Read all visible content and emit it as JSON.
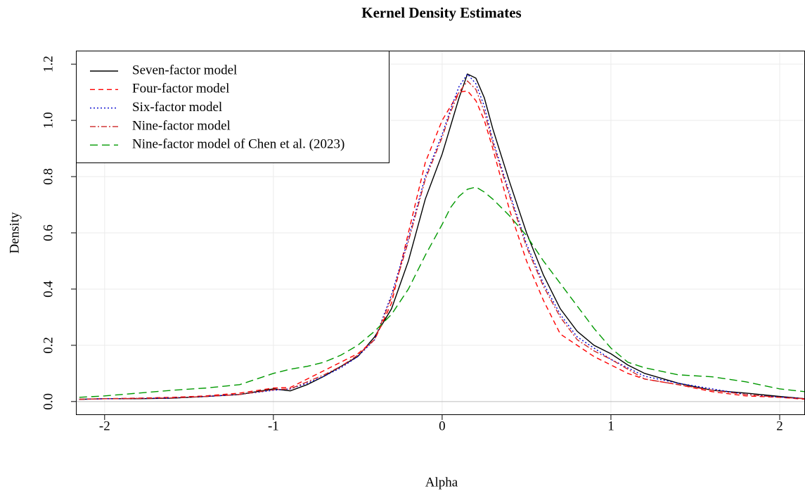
{
  "chart_data": {
    "type": "line",
    "title": "Kernel Density Estimates",
    "x_label": "Alpha",
    "y_label": "Density",
    "x": [
      -2.15,
      -2.0,
      -1.8,
      -1.6,
      -1.4,
      -1.2,
      -1.0,
      -0.9,
      -0.8,
      -0.7,
      -0.6,
      -0.5,
      -0.4,
      -0.3,
      -0.2,
      -0.1,
      0,
      0.05,
      0.1,
      0.15,
      0.2,
      0.25,
      0.3,
      0.4,
      0.5,
      0.6,
      0.7,
      0.8,
      0.9,
      1.0,
      1.1,
      1.2,
      1.4,
      1.6,
      1.8,
      2.0,
      2.15
    ],
    "series": [
      {
        "name": "Seven-factor model",
        "color": "#000000",
        "linestyle": "solid",
        "values": [
          0.008,
          0.01,
          0.01,
          0.012,
          0.018,
          0.025,
          0.045,
          0.038,
          0.06,
          0.09,
          0.125,
          0.16,
          0.23,
          0.33,
          0.5,
          0.72,
          0.88,
          0.98,
          1.08,
          1.165,
          1.15,
          1.08,
          0.97,
          0.78,
          0.6,
          0.45,
          0.33,
          0.25,
          0.2,
          0.17,
          0.13,
          0.1,
          0.065,
          0.04,
          0.03,
          0.018,
          0.01
        ]
      },
      {
        "name": "Four-factor model",
        "color": "#ff0000",
        "linestyle": "dashed",
        "values": [
          0.008,
          0.01,
          0.012,
          0.015,
          0.02,
          0.03,
          0.048,
          0.05,
          0.08,
          0.11,
          0.14,
          0.17,
          0.22,
          0.35,
          0.6,
          0.85,
          1.0,
          1.05,
          1.1,
          1.105,
          1.07,
          1.0,
          0.9,
          0.68,
          0.5,
          0.36,
          0.24,
          0.2,
          0.16,
          0.13,
          0.1,
          0.08,
          0.06,
          0.035,
          0.02,
          0.015,
          0.008
        ]
      },
      {
        "name": "Six-factor model",
        "color": "#0000cd",
        "linestyle": "dotted",
        "values": [
          0.008,
          0.01,
          0.011,
          0.013,
          0.018,
          0.025,
          0.04,
          0.045,
          0.065,
          0.09,
          0.12,
          0.16,
          0.22,
          0.38,
          0.58,
          0.8,
          0.95,
          1.04,
          1.12,
          1.165,
          1.13,
          1.05,
          0.93,
          0.74,
          0.56,
          0.42,
          0.31,
          0.23,
          0.19,
          0.15,
          0.12,
          0.09,
          0.065,
          0.045,
          0.025,
          0.016,
          0.01
        ]
      },
      {
        "name": "Nine-factor model",
        "color": "#cd2626",
        "linestyle": "dotdash",
        "values": [
          0.008,
          0.01,
          0.011,
          0.013,
          0.018,
          0.025,
          0.042,
          0.045,
          0.07,
          0.095,
          0.125,
          0.165,
          0.22,
          0.37,
          0.57,
          0.79,
          0.94,
          1.03,
          1.1,
          1.14,
          1.11,
          1.03,
          0.92,
          0.73,
          0.55,
          0.41,
          0.3,
          0.22,
          0.18,
          0.15,
          0.115,
          0.08,
          0.06,
          0.04,
          0.025,
          0.015,
          0.01
        ]
      },
      {
        "name": "Nine-factor model of Chen et al. (2023)",
        "color": "#009900",
        "linestyle": "longdash",
        "values": [
          0.015,
          0.02,
          0.03,
          0.04,
          0.048,
          0.06,
          0.1,
          0.115,
          0.125,
          0.14,
          0.165,
          0.2,
          0.25,
          0.31,
          0.4,
          0.52,
          0.63,
          0.69,
          0.73,
          0.755,
          0.763,
          0.745,
          0.72,
          0.66,
          0.59,
          0.5,
          0.42,
          0.34,
          0.26,
          0.19,
          0.14,
          0.12,
          0.095,
          0.088,
          0.07,
          0.045,
          0.035
        ]
      }
    ],
    "xlim": [
      -2.17,
      2.15
    ],
    "ylim": [
      -0.048,
      1.248
    ],
    "xticks": [
      -2,
      -1,
      0,
      1,
      2
    ],
    "yticks": [
      {
        "value": 0,
        "label": "0.0"
      },
      {
        "value": 0.2,
        "label": "0.2"
      },
      {
        "value": 0.4,
        "label": "0.4"
      },
      {
        "value": 0.6,
        "label": "0.6"
      },
      {
        "value": 0.8,
        "label": "0.8"
      },
      {
        "value": 1.0,
        "label": "1.0"
      },
      {
        "value": 1.2,
        "label": "1.2"
      }
    ],
    "grid": true,
    "legend": "top-left"
  }
}
